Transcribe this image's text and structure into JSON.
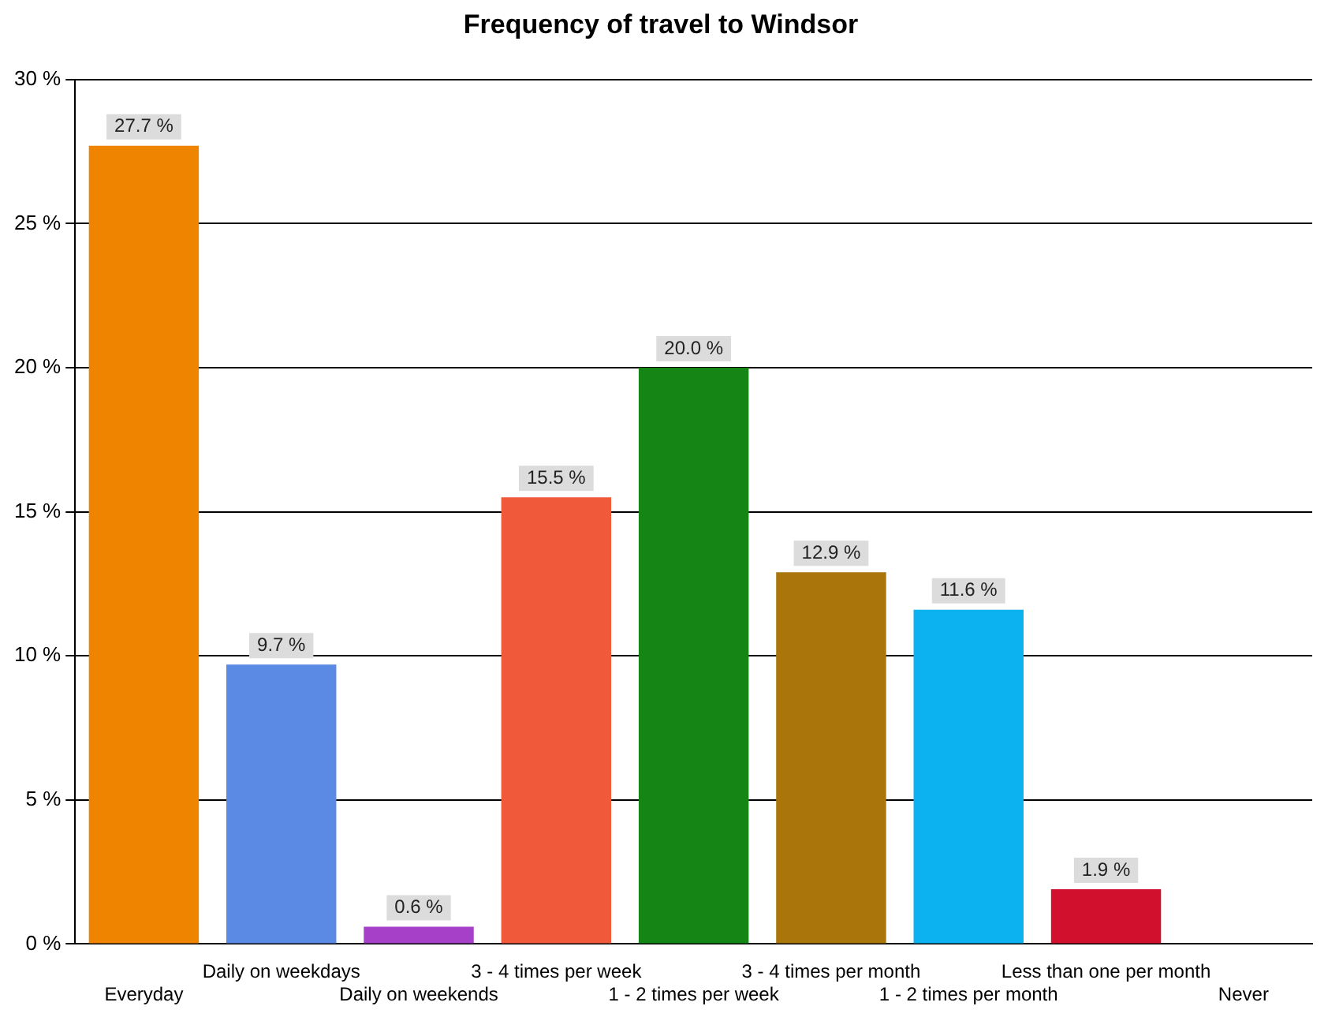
{
  "chart_data": {
    "type": "bar",
    "title": "Frequency of travel to Windsor",
    "categories": [
      "Everyday",
      "Daily on weekdays",
      "Daily on weekends",
      "3 - 4 times per week",
      "1 - 2 times per week",
      "3 - 4 times per month",
      "1 - 2 times per month",
      "Less than one per month",
      "Never"
    ],
    "values": [
      27.7,
      9.7,
      0.6,
      15.5,
      20.0,
      12.9,
      11.6,
      1.9,
      0
    ],
    "value_labels": [
      "27.7 %",
      "9.7 %",
      "0.6 %",
      "15.5 %",
      "20.0 %",
      "12.9 %",
      "11.6 %",
      "1.9 %",
      null
    ],
    "colors": [
      "#ef8400",
      "#5a8ae4",
      "#a640c8",
      "#f05a3a",
      "#158515",
      "#aa760c",
      "#0cb2f0",
      "#d0102c",
      "#888888"
    ],
    "ylim": [
      0,
      30
    ],
    "yticks": [
      {
        "value": 0,
        "label": "0 %"
      },
      {
        "value": 5,
        "label": "5 %"
      },
      {
        "value": 10,
        "label": "10 %"
      },
      {
        "value": 15,
        "label": "15 %"
      },
      {
        "value": 20,
        "label": "20 %"
      },
      {
        "value": 25,
        "label": "25 %"
      },
      {
        "value": 30,
        "label": "30 %"
      }
    ],
    "grid": "y",
    "legend": false
  }
}
